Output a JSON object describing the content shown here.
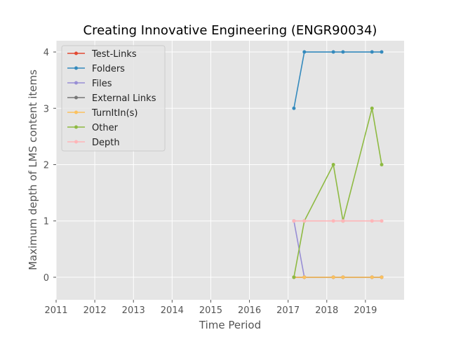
{
  "chart_data": {
    "type": "line",
    "title": "Creating Innovative Engineering (ENGR90034)",
    "xlabel": "Time Period",
    "ylabel": "Maximum depth of LMS content items",
    "xlim": [
      2011.0,
      2020.0
    ],
    "ylim": [
      -0.4,
      4.2
    ],
    "x_ticks": [
      2011,
      2012,
      2013,
      2014,
      2015,
      2016,
      2017,
      2018,
      2019
    ],
    "y_ticks": [
      0,
      1,
      2,
      3,
      4
    ],
    "grid": true,
    "legend_position": "top-left",
    "x": [
      2017.15,
      2017.42,
      2018.17,
      2018.42,
      2019.17,
      2019.42
    ],
    "series": [
      {
        "name": "Test-Links",
        "color": "#e24a33",
        "values": [
          0,
          0,
          0,
          0,
          0,
          0
        ]
      },
      {
        "name": "Folders",
        "color": "#348abd",
        "values": [
          3,
          4,
          4,
          4,
          4,
          4
        ]
      },
      {
        "name": "Files",
        "color": "#988ed5",
        "values": [
          1,
          0,
          0,
          0,
          0,
          0
        ]
      },
      {
        "name": "External Links",
        "color": "#777777",
        "values": [
          0,
          0,
          0,
          0,
          0,
          0
        ]
      },
      {
        "name": "TurnItIn(s)",
        "color": "#fbc15e",
        "values": [
          0,
          0,
          0,
          0,
          0,
          0
        ]
      },
      {
        "name": "Other",
        "color": "#8eba42",
        "values": [
          0,
          1,
          2,
          1,
          3,
          2
        ]
      },
      {
        "name": "Depth",
        "color": "#ffb5b8",
        "values": [
          1,
          1,
          1,
          1,
          1,
          1
        ]
      }
    ]
  }
}
